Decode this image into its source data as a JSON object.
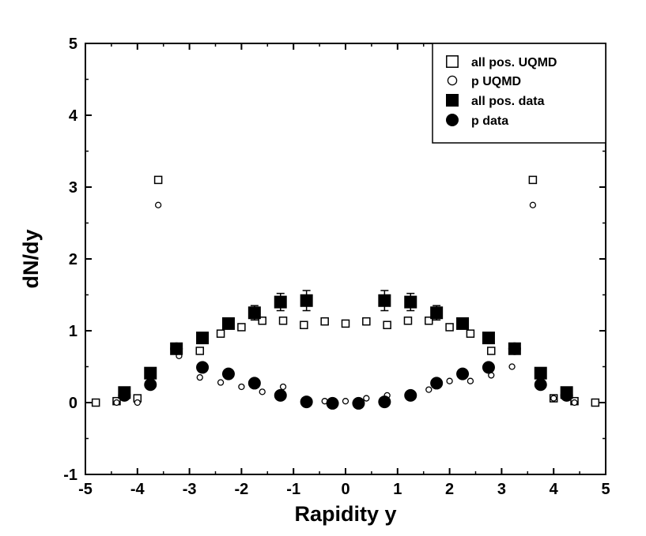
{
  "chart_data": {
    "type": "scatter",
    "title": "",
    "xlabel": "Rapidity y",
    "ylabel": "dN/dy",
    "xlim": [
      -5,
      5
    ],
    "ylim": [
      -1,
      5
    ],
    "xticks": [
      -5,
      -4,
      -3,
      -2,
      -1,
      0,
      1,
      2,
      3,
      4,
      5
    ],
    "yticks": [
      -1,
      0,
      1,
      2,
      3,
      4,
      5
    ],
    "xtick_labels": [
      "-5",
      "-4",
      "-3",
      "-2",
      "-1",
      "0",
      "1",
      "2",
      "3",
      "4",
      "5"
    ],
    "ytick_labels": [
      "-1",
      "0",
      "1",
      "2",
      "3",
      "4",
      "5"
    ],
    "grid": false,
    "legend_position": "top-right",
    "series": [
      {
        "name": "all pos. UQMD",
        "marker": "open-square",
        "x": [
          -4.8,
          -4.4,
          -4.0,
          -3.6,
          -2.8,
          -2.4,
          -2.0,
          -1.6,
          -1.2,
          -0.8,
          -0.4,
          0.0,
          0.4,
          0.8,
          1.2,
          1.6,
          2.0,
          2.4,
          2.8,
          3.6,
          4.0,
          4.4,
          4.8
        ],
        "y": [
          0.0,
          0.02,
          0.06,
          3.1,
          0.72,
          0.96,
          1.05,
          1.14,
          1.14,
          1.08,
          1.13,
          1.1,
          1.13,
          1.08,
          1.14,
          1.14,
          1.05,
          0.96,
          0.72,
          3.1,
          0.06,
          0.02,
          0.0
        ]
      },
      {
        "name": "p UQMD",
        "marker": "open-circle",
        "x": [
          -4.4,
          -4.0,
          -3.6,
          -3.2,
          -2.8,
          -2.4,
          -2.0,
          -1.6,
          -1.2,
          -0.4,
          0.0,
          0.4,
          0.8,
          1.6,
          2.0,
          2.4,
          2.8,
          3.2,
          3.6,
          4.0,
          4.4
        ],
        "y": [
          0.0,
          0.0,
          2.75,
          0.65,
          0.35,
          0.28,
          0.22,
          0.15,
          0.22,
          0.02,
          0.02,
          0.06,
          0.1,
          0.18,
          0.3,
          0.3,
          0.38,
          0.5,
          2.75,
          0.06,
          0.0
        ]
      },
      {
        "name": "all pos. data",
        "marker": "filled-square",
        "x": [
          -4.25,
          -3.75,
          -3.25,
          -2.75,
          -2.25,
          -1.75,
          -1.25,
          -0.75,
          0.75,
          1.25,
          1.75,
          2.25,
          2.75,
          3.25,
          3.75,
          4.25
        ],
        "y": [
          0.14,
          0.41,
          0.75,
          0.9,
          1.1,
          1.25,
          1.4,
          1.42,
          1.42,
          1.4,
          1.25,
          1.1,
          0.9,
          0.75,
          0.41,
          0.14
        ],
        "yerr": [
          0.0,
          0.0,
          0.0,
          0.0,
          0.05,
          0.1,
          0.12,
          0.14,
          0.14,
          0.12,
          0.1,
          0.05,
          0.0,
          0.0,
          0.0,
          0.0
        ]
      },
      {
        "name": "p data",
        "marker": "filled-circle",
        "x": [
          -4.25,
          -3.75,
          -3.25,
          -2.75,
          -2.25,
          -1.75,
          -1.25,
          -0.75,
          -0.25,
          0.25,
          0.75,
          1.25,
          1.75,
          2.25,
          2.75,
          3.25,
          3.75,
          4.25
        ],
        "y": [
          0.1,
          0.25,
          0.75,
          0.49,
          0.4,
          0.27,
          0.1,
          0.01,
          -0.01,
          -0.01,
          0.01,
          0.1,
          0.27,
          0.4,
          0.49,
          0.75,
          0.25,
          0.1
        ]
      }
    ]
  }
}
